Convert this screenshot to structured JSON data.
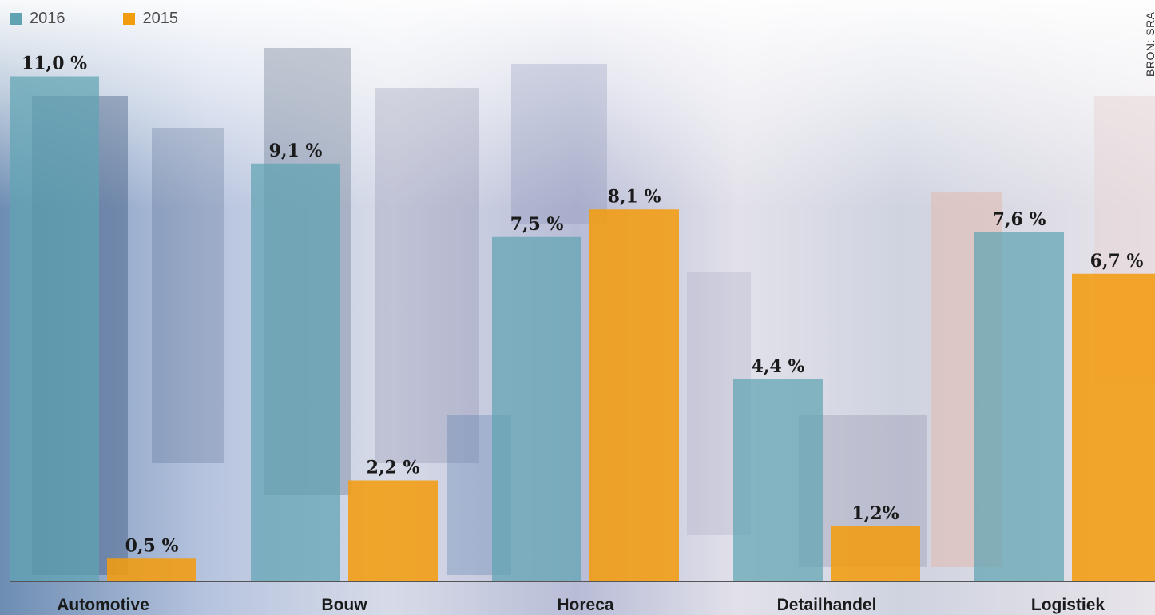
{
  "legend": [
    {
      "label": "2016",
      "color": "#5fa3b3"
    },
    {
      "label": "2015",
      "color": "#f29c10"
    }
  ],
  "source": "BRON: SRA",
  "chart_data": {
    "type": "bar",
    "categories": [
      "Automotive",
      "Bouw",
      "Horeca",
      "Detailhandel",
      "Logistiek"
    ],
    "series": [
      {
        "name": "2016",
        "values": [
          11.0,
          9.1,
          7.5,
          4.4,
          7.6
        ],
        "labels": [
          "11,0 %",
          "9,1 %",
          "7,5 %",
          "4,4 %",
          "7,6 %"
        ],
        "color": "#5fa3b3"
      },
      {
        "name": "2015",
        "values": [
          0.5,
          2.2,
          8.1,
          1.2,
          6.7
        ],
        "labels": [
          "0,5 %",
          "2,2 %",
          "8,1 %",
          "1,2%",
          "6,7 %"
        ],
        "color": "#f29c10"
      }
    ],
    "ylim": [
      0,
      12
    ],
    "grid": false,
    "legend_position": "top-left"
  }
}
